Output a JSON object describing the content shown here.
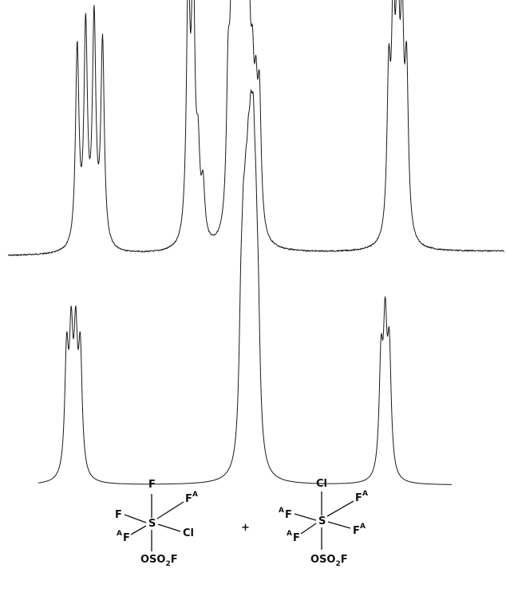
{
  "spectra": [
    {
      "kind": "experimental",
      "baseline_noise": true,
      "multiplets": [
        {
          "center": 0.165,
          "spacing": 0.017,
          "heights": [
            0.78,
            0.85,
            0.88,
            0.8
          ]
        },
        {
          "center": 0.378,
          "spacing": 0.01,
          "heights": [
            1.0,
            1.02,
            0.3,
            0.2
          ]
        },
        {
          "center": 0.475,
          "spacing": 0.007,
          "heights": [
            0.55,
            0.7,
            0.65,
            0.85,
            0.72,
            0.9,
            0.6,
            0.45,
            0.4,
            0.5
          ]
        },
        {
          "center": 0.785,
          "spacing": 0.009,
          "heights": [
            0.6,
            0.8,
            0.92,
            0.75,
            0.62
          ]
        }
      ]
    },
    {
      "kind": "simulated",
      "baseline_noise": false,
      "multiplets": [
        {
          "center": 0.085,
          "spacing": 0.011,
          "heights": [
            0.62,
            0.66,
            0.66,
            0.62
          ]
        },
        {
          "center": 0.511,
          "spacing": 0.006,
          "heights": [
            0.6,
            0.72,
            0.7,
            0.8,
            0.9,
            1.0,
            0.7,
            0.55
          ]
        },
        {
          "center": 0.839,
          "spacing": 0.01,
          "heights": [
            0.58,
            0.72,
            0.62
          ]
        }
      ]
    }
  ],
  "structures": [
    {
      "top": "F",
      "right_upper": "F",
      "right_upper_sup": "A",
      "center": "S",
      "left_upper": "F",
      "left_lower": "F",
      "left_lower_sup": "A",
      "right": "Cl",
      "bottom": "OSO",
      "bottom_sub": "2",
      "bottom_end": "F"
    },
    {
      "top": "Cl",
      "right_upper": "F",
      "right_upper_sup": "A",
      "center": "S",
      "left_upper": "F",
      "left_upper_sup": "A",
      "left_lower": "F",
      "left_lower_sup": "A",
      "right": "F",
      "right_sup": "A",
      "bottom": "OSO",
      "bottom_sub": "2",
      "bottom_end": "F"
    }
  ],
  "plus_sign": "+",
  "colors": {
    "ink": "#1a1a1a",
    "paper": "#ffffff"
  }
}
